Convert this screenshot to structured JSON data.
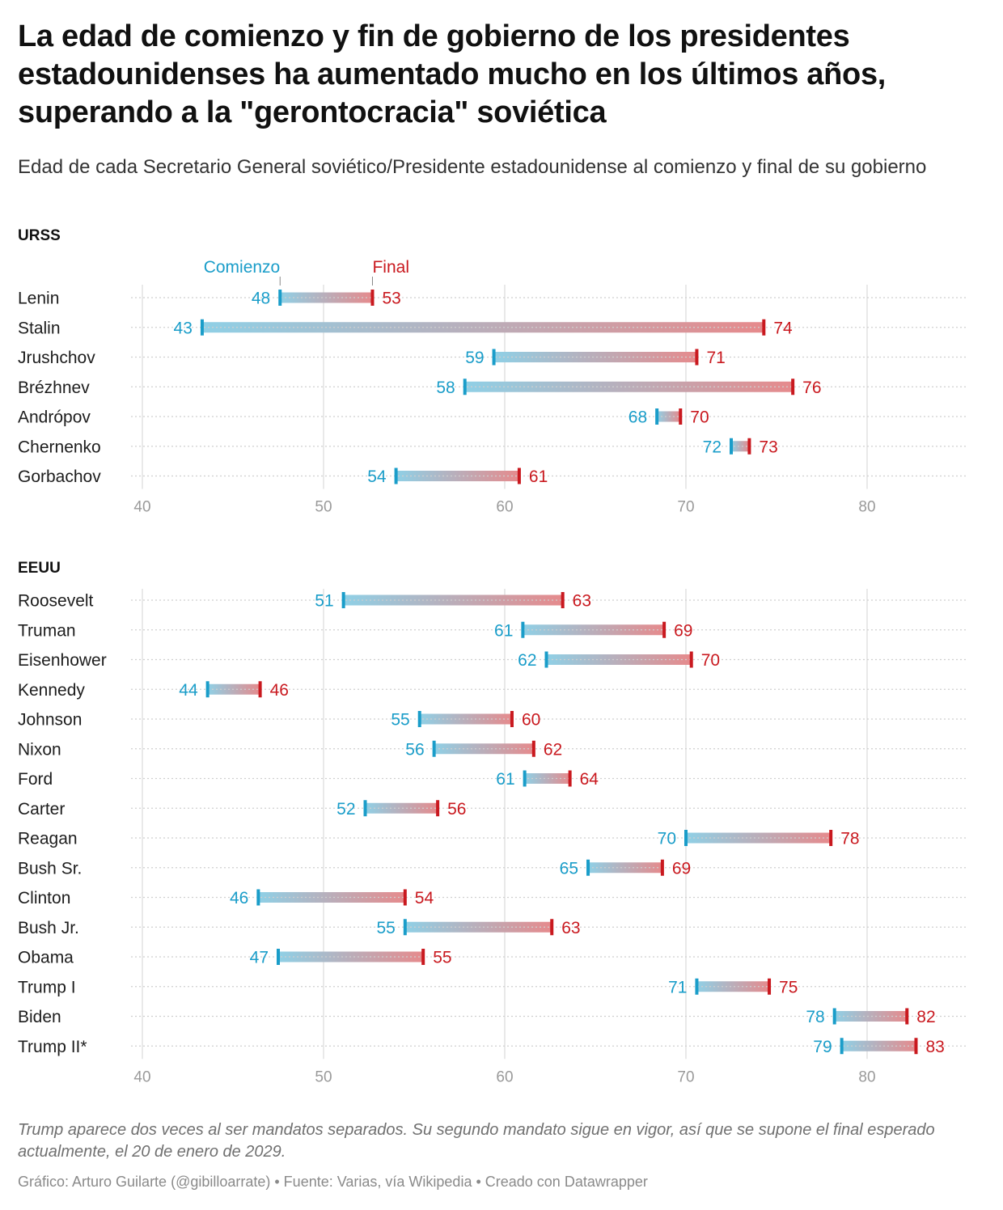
{
  "header": {
    "title": "La edad de comienzo y fin de gobierno de los presidentes estadounidenses ha aumentado mucho en los últimos años, superando a la \"gerontocracia\" soviética",
    "subtitle": "Edad de cada Secretario General soviético/Presidente estadounidense al comienzo y final de su gobierno"
  },
  "colors": {
    "start": "#1a9dc9",
    "end": "#c9191f",
    "bar_start": "#8fd0e6",
    "bar_end": "#e68a8c",
    "grid": "#e2e2e2",
    "dots": "#cfcfcf"
  },
  "chart_data": [
    {
      "type": "dumbbell",
      "title": "URSS",
      "legend": {
        "start_label": "Comienzo",
        "end_label": "Final",
        "anchor_row": "Lenin"
      },
      "xlim": [
        40,
        85
      ],
      "xticks": [
        40,
        50,
        60,
        70,
        80
      ],
      "grid": true,
      "rows": [
        {
          "name": "Lenin",
          "start": 47.6,
          "end": 52.7,
          "start_label": "48",
          "end_label": "53"
        },
        {
          "name": "Stalin",
          "start": 43.3,
          "end": 74.3,
          "start_label": "43",
          "end_label": "74"
        },
        {
          "name": "Jrushchov",
          "start": 59.4,
          "end": 70.6,
          "start_label": "59",
          "end_label": "71"
        },
        {
          "name": "Brézhnev",
          "start": 57.8,
          "end": 75.9,
          "start_label": "58",
          "end_label": "76"
        },
        {
          "name": "Andrópov",
          "start": 68.4,
          "end": 69.7,
          "start_label": "68",
          "end_label": "70"
        },
        {
          "name": "Chernenko",
          "start": 72.5,
          "end": 73.5,
          "start_label": "72",
          "end_label": "73"
        },
        {
          "name": "Gorbachov",
          "start": 54.0,
          "end": 60.8,
          "start_label": "54",
          "end_label": "61"
        }
      ]
    },
    {
      "type": "dumbbell",
      "title": "EEUU",
      "xlim": [
        40,
        85
      ],
      "xticks": [
        40,
        50,
        60,
        70,
        80
      ],
      "grid": true,
      "rows": [
        {
          "name": "Roosevelt",
          "start": 51.1,
          "end": 63.2,
          "start_label": "51",
          "end_label": "63"
        },
        {
          "name": "Truman",
          "start": 61.0,
          "end": 68.8,
          "start_label": "61",
          "end_label": "69"
        },
        {
          "name": "Eisenhower",
          "start": 62.3,
          "end": 70.3,
          "start_label": "62",
          "end_label": "70"
        },
        {
          "name": "Kennedy",
          "start": 43.6,
          "end": 46.5,
          "start_label": "44",
          "end_label": "46"
        },
        {
          "name": "Johnson",
          "start": 55.3,
          "end": 60.4,
          "start_label": "55",
          "end_label": "60"
        },
        {
          "name": "Nixon",
          "start": 56.1,
          "end": 61.6,
          "start_label": "56",
          "end_label": "62"
        },
        {
          "name": "Ford",
          "start": 61.1,
          "end": 63.6,
          "start_label": "61",
          "end_label": "64"
        },
        {
          "name": "Carter",
          "start": 52.3,
          "end": 56.3,
          "start_label": "52",
          "end_label": "56"
        },
        {
          "name": "Reagan",
          "start": 70.0,
          "end": 78.0,
          "start_label": "70",
          "end_label": "78"
        },
        {
          "name": "Bush Sr.",
          "start": 64.6,
          "end": 68.7,
          "start_label": "65",
          "end_label": "69"
        },
        {
          "name": "Clinton",
          "start": 46.4,
          "end": 54.5,
          "start_label": "46",
          "end_label": "54"
        },
        {
          "name": "Bush Jr.",
          "start": 54.5,
          "end": 62.6,
          "start_label": "55",
          "end_label": "63"
        },
        {
          "name": "Obama",
          "start": 47.5,
          "end": 55.5,
          "start_label": "47",
          "end_label": "55"
        },
        {
          "name": "Trump I",
          "start": 70.6,
          "end": 74.6,
          "start_label": "71",
          "end_label": "75"
        },
        {
          "name": "Biden",
          "start": 78.2,
          "end": 82.2,
          "start_label": "78",
          "end_label": "82"
        },
        {
          "name": "Trump II*",
          "start": 78.6,
          "end": 82.7,
          "start_label": "79",
          "end_label": "83"
        }
      ]
    }
  ],
  "footer": {
    "notes": "Trump aparece dos veces al ser mandatos separados. Su segundo mandato sigue en vigor, así que se supone el final esperado actualmente, el 20 de enero de 2029.",
    "byline": "Gráfico: Arturo Guilarte (@gibilloarrate) • Fuente: Varias, vía Wikipedia • Creado con Datawrapper"
  }
}
